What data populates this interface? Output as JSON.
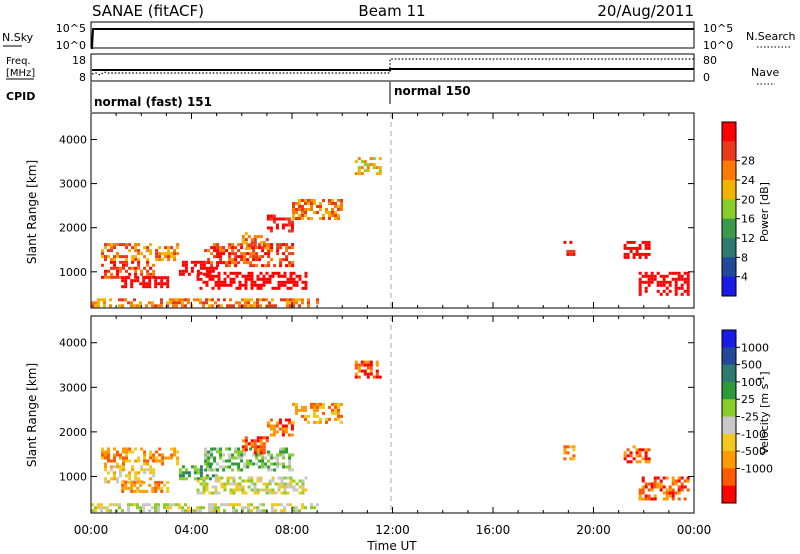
{
  "header": {
    "station": "SANAE (fitACF)",
    "beam": "Beam 11",
    "date": "20/Aug/2011"
  },
  "strips": {
    "nsky_label": "N.Sky",
    "nsky_ticks": [
      "10^5",
      "10^0"
    ],
    "nsearch_label": "N.Search",
    "nsearch_ticks": [
      "10^5",
      "10^0"
    ],
    "freq_label_1": "Freq.",
    "freq_label_2": "[MHz]",
    "freq_ticks": [
      "18",
      "8"
    ],
    "nave_label": "Nave",
    "nave_ticks": [
      "80",
      "0"
    ],
    "cpid_label": "CPID",
    "cpid_modes": [
      "normal (fast) 151",
      "normal 150"
    ]
  },
  "colors": {
    "power": [
      "#1a1ae6",
      "#22489a",
      "#2f7a6e",
      "#3a9a4a",
      "#8acd2a",
      "#f0b400",
      "#ff7a00",
      "#e83a1a",
      "#ff0000"
    ],
    "velocity": [
      "#1a1ae6",
      "#22489a",
      "#2f7a6e",
      "#2a9a3a",
      "#8acd2a",
      "#c8c8c8",
      "#f0c820",
      "#ff9a00",
      "#ff5a00",
      "#ff0000"
    ]
  },
  "chart_data": [
    {
      "type": "heatmap",
      "name": "power-panel",
      "xlabel": "",
      "ylabel": "Slant Range [km]",
      "xlim": [
        0,
        24
      ],
      "ylim": [
        180,
        4600
      ],
      "yticks": [
        1000,
        2000,
        3000,
        4000
      ],
      "colorbar": {
        "label": "Power [dB]",
        "range": [
          0,
          32
        ],
        "ticks": [
          "4",
          "8",
          "12",
          "16",
          "20",
          "24",
          "28"
        ]
      },
      "patches": [
        {
          "x": [
            0.4,
            2.5
          ],
          "y": [
            900,
            1250
          ],
          "v": 7
        },
        {
          "x": [
            0.4,
            3.5
          ],
          "y": [
            1300,
            1650
          ],
          "v": 6
        },
        {
          "x": [
            1.2,
            3.0
          ],
          "y": [
            650,
            900
          ],
          "v": 10
        },
        {
          "x": [
            3.5,
            5.0
          ],
          "y": [
            950,
            1250
          ],
          "v": 14
        },
        {
          "x": [
            4.5,
            8.0
          ],
          "y": [
            1150,
            1650
          ],
          "v": 7
        },
        {
          "x": [
            4.2,
            8.5
          ],
          "y": [
            650,
            1000
          ],
          "v": 12
        },
        {
          "x": [
            6.0,
            7.0
          ],
          "y": [
            1500,
            1900
          ],
          "v": 6
        },
        {
          "x": [
            7.0,
            8.0
          ],
          "y": [
            1900,
            2300
          ],
          "v": 8
        },
        {
          "x": [
            8.0,
            10.0
          ],
          "y": [
            2200,
            2650
          ],
          "v": 6
        },
        {
          "x": [
            10.5,
            11.5
          ],
          "y": [
            3200,
            3600
          ],
          "v": 5
        },
        {
          "x": [
            0.0,
            9.0
          ],
          "y": [
            200,
            400
          ],
          "v": 6
        },
        {
          "x": [
            18.8,
            19.2
          ],
          "y": [
            1400,
            1700
          ],
          "v": 8
        },
        {
          "x": [
            21.2,
            22.2
          ],
          "y": [
            1300,
            1700
          ],
          "v": 11
        },
        {
          "x": [
            21.8,
            23.8
          ],
          "y": [
            500,
            1000
          ],
          "v": 9
        }
      ]
    },
    {
      "type": "heatmap",
      "name": "velocity-panel",
      "xlabel": "Time UT",
      "ylabel": "Slant Range [km]",
      "xlim": [
        0,
        24
      ],
      "xticks": [
        "00:00",
        "04:00",
        "08:00",
        "12:00",
        "16:00",
        "20:00",
        "00:00"
      ],
      "ylim": [
        180,
        4600
      ],
      "yticks": [
        1000,
        2000,
        3000,
        4000
      ],
      "colorbar": {
        "label": "Velocity [m s^-1]",
        "ticks": [
          "1000",
          "500",
          "100",
          "25",
          "-25",
          "-100",
          "-500",
          "-1000"
        ]
      },
      "patches": [
        {
          "x": [
            0.4,
            2.5
          ],
          "y": [
            900,
            1250
          ],
          "v": 6
        },
        {
          "x": [
            0.4,
            3.5
          ],
          "y": [
            1300,
            1650
          ],
          "v": 7
        },
        {
          "x": [
            1.2,
            3.0
          ],
          "y": [
            650,
            900
          ],
          "v": 7
        },
        {
          "x": [
            3.5,
            5.0
          ],
          "y": [
            950,
            1250
          ],
          "v": 3
        },
        {
          "x": [
            4.5,
            8.0
          ],
          "y": [
            1150,
            1650
          ],
          "v": 4
        },
        {
          "x": [
            4.2,
            8.5
          ],
          "y": [
            650,
            1000
          ],
          "v": 5
        },
        {
          "x": [
            6.0,
            7.0
          ],
          "y": [
            1500,
            1900
          ],
          "v": 8
        },
        {
          "x": [
            7.0,
            8.0
          ],
          "y": [
            1900,
            2300
          ],
          "v": 8
        },
        {
          "x": [
            8.0,
            10.0
          ],
          "y": [
            2200,
            2650
          ],
          "v": 7
        },
        {
          "x": [
            10.5,
            11.5
          ],
          "y": [
            3200,
            3600
          ],
          "v": 8
        },
        {
          "x": [
            0.0,
            9.0
          ],
          "y": [
            200,
            400
          ],
          "v": 5
        },
        {
          "x": [
            18.8,
            19.2
          ],
          "y": [
            1400,
            1700
          ],
          "v": 7
        },
        {
          "x": [
            21.2,
            22.2
          ],
          "y": [
            1300,
            1700
          ],
          "v": 8
        },
        {
          "x": [
            21.8,
            23.8
          ],
          "y": [
            500,
            1000
          ],
          "v": 8
        }
      ]
    }
  ]
}
